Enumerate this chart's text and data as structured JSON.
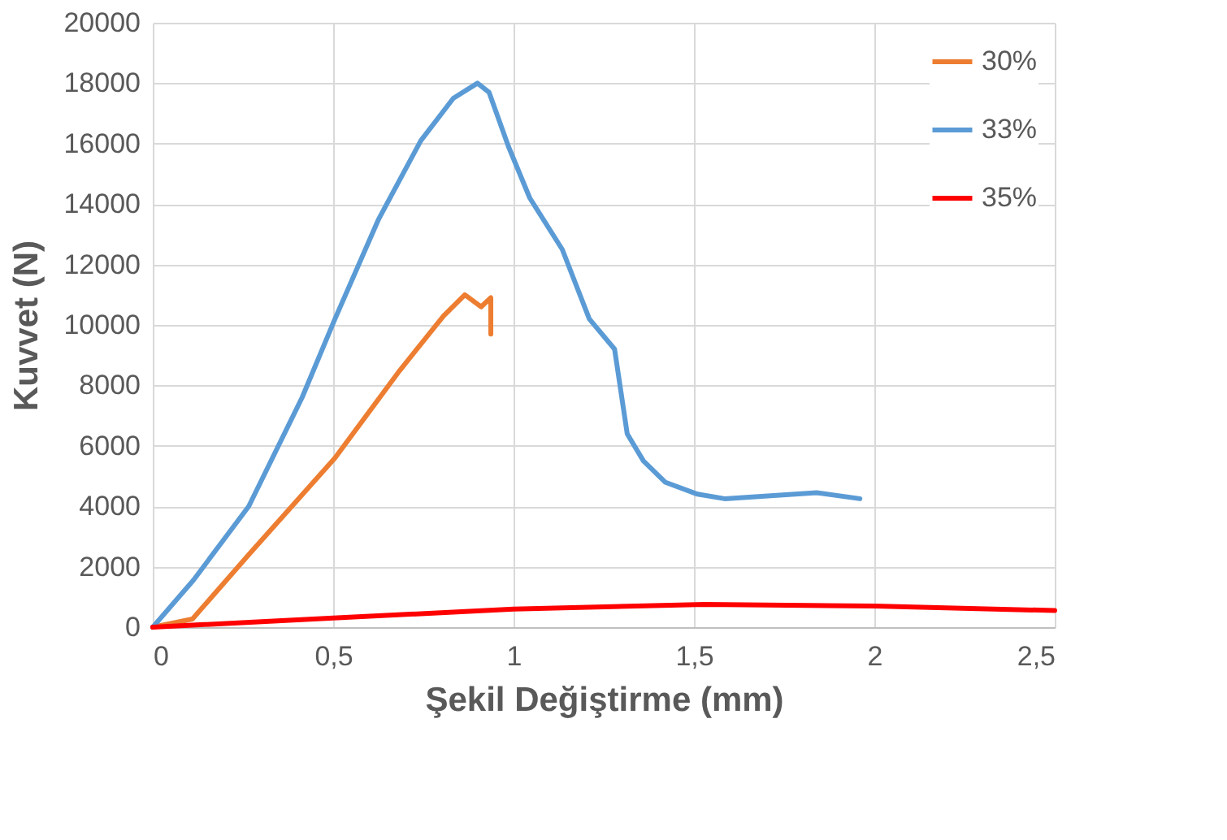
{
  "chart_data": {
    "type": "line",
    "xlabel": "Şekil Değiştirme (mm)",
    "ylabel": "Kuvvet (N)",
    "xlim": [
      0,
      2.5
    ],
    "xticks": [
      {
        "value": 0,
        "label": "0"
      },
      {
        "value": 0.5,
        "label": "0,5"
      },
      {
        "value": 1,
        "label": "1"
      },
      {
        "value": 1.5,
        "label": "1,5"
      },
      {
        "value": 2,
        "label": "2"
      },
      {
        "value": 2.5,
        "label": "2,5"
      }
    ],
    "ylim": [
      0,
      20000
    ],
    "yticks": [
      0,
      2000,
      4000,
      6000,
      8000,
      10000,
      12000,
      14000,
      16000,
      18000,
      20000
    ],
    "grid": true,
    "legend": "top right",
    "marker": "none",
    "line_style": "solid",
    "series": [
      {
        "name": "30%",
        "color": "#ed7d31",
        "x": [
          0,
          0.11,
          0.266,
          0.505,
          0.685,
          0.806,
          0.865,
          0.91,
          0.937,
          0.937
        ],
        "values": [
          0,
          270,
          2400,
          5600,
          8500,
          10300,
          11000,
          10600,
          10900,
          9700
        ]
      },
      {
        "name": "33%",
        "color": "#5b9bd5",
        "x": [
          0,
          0.113,
          0.266,
          0.414,
          0.505,
          0.626,
          0.743,
          0.833,
          0.9,
          0.932,
          0.986,
          1.045,
          1.135,
          1.21,
          1.28,
          1.315,
          1.36,
          1.42,
          1.51,
          1.585,
          1.84,
          1.96
        ],
        "values": [
          0,
          1560,
          4000,
          7600,
          10200,
          13500,
          16100,
          17500,
          18000,
          17700,
          15900,
          14200,
          12500,
          10200,
          9200,
          6400,
          5500,
          4800,
          4400,
          4250,
          4450,
          4250
        ]
      },
      {
        "name": "35%",
        "color": "#ff0000",
        "x": [
          0,
          0.5,
          1.0,
          1.53,
          2.0,
          2.5
        ],
        "values": [
          0,
          300,
          600,
          750,
          700,
          550
        ]
      }
    ]
  }
}
